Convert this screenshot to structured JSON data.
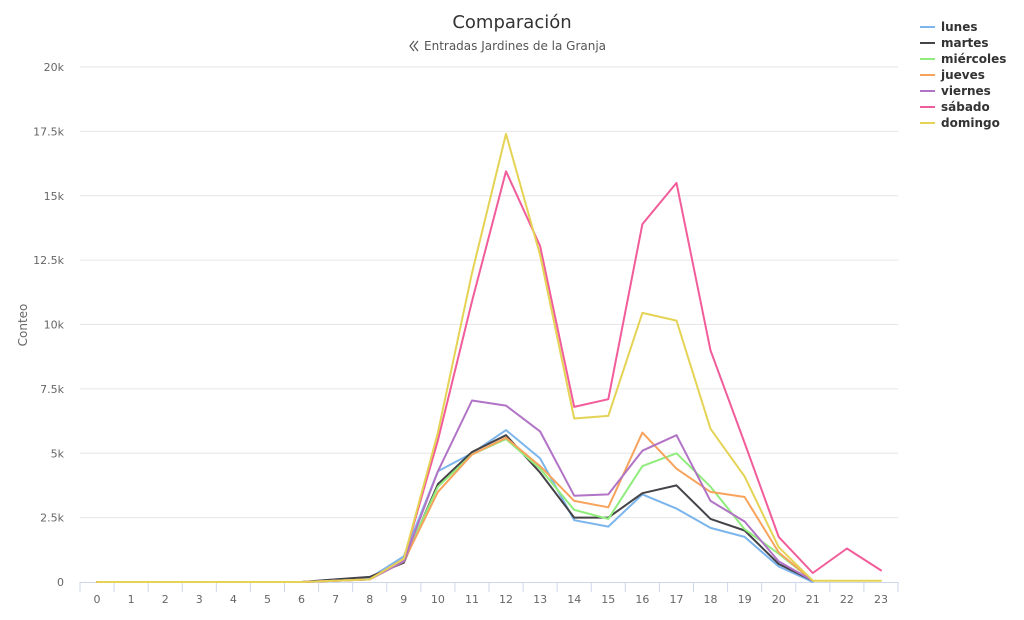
{
  "chart_data": {
    "type": "line",
    "title": "Comparación",
    "subtitle_icon": "double-chevron-left-icon",
    "subtitle": "Entradas Jardines de la Granja",
    "xlabel": "",
    "ylabel": "Conteo",
    "ylim": [
      0,
      20000
    ],
    "y_ticks": [
      0,
      2500,
      5000,
      7500,
      10000,
      12500,
      15000,
      17500,
      20000
    ],
    "y_tick_labels": [
      "0",
      "2.5k",
      "5k",
      "7.5k",
      "10k",
      "12.5k",
      "15k",
      "17.5k",
      "20k"
    ],
    "categories": [
      "0",
      "1",
      "2",
      "3",
      "4",
      "5",
      "6",
      "7",
      "8",
      "9",
      "10",
      "11",
      "12",
      "13",
      "14",
      "15",
      "16",
      "17",
      "18",
      "19",
      "20",
      "21",
      "22",
      "23"
    ],
    "grid": true,
    "legend_position": "top-right",
    "series": [
      {
        "name": "lunes",
        "color": "#7cb5ec",
        "values": [
          0,
          0,
          0,
          0,
          0,
          0,
          0,
          100,
          150,
          1000,
          4300,
          5000,
          5900,
          4800,
          2400,
          2150,
          3400,
          2850,
          2100,
          1750,
          600,
          0,
          null,
          null
        ]
      },
      {
        "name": "martes",
        "color": "#434348",
        "values": [
          0,
          0,
          0,
          0,
          0,
          0,
          0,
          100,
          200,
          750,
          3800,
          5050,
          5700,
          4250,
          2500,
          2500,
          3450,
          3750,
          2450,
          2000,
          700,
          50,
          null,
          null
        ]
      },
      {
        "name": "miércoles",
        "color": "#90ed7d",
        "values": [
          0,
          0,
          0,
          0,
          0,
          0,
          0,
          50,
          100,
          850,
          3700,
          4950,
          5550,
          4400,
          2800,
          2450,
          4500,
          5000,
          3700,
          2050,
          1100,
          50,
          null,
          null
        ]
      },
      {
        "name": "jueves",
        "color": "#f7a35c",
        "values": [
          0,
          0,
          0,
          0,
          0,
          0,
          0,
          50,
          100,
          800,
          3500,
          4950,
          5600,
          4500,
          3150,
          2900,
          5800,
          4400,
          3500,
          3300,
          1150,
          50,
          null,
          null
        ]
      },
      {
        "name": "viernes",
        "color": "#b173c5",
        "values": [
          0,
          0,
          0,
          0,
          0,
          0,
          0,
          50,
          100,
          800,
          4300,
          7050,
          6850,
          5850,
          3350,
          3400,
          5100,
          5700,
          3150,
          2350,
          800,
          50,
          null,
          null
        ]
      },
      {
        "name": "sábado",
        "color": "#f15c9a",
        "values": [
          0,
          0,
          0,
          0,
          0,
          0,
          0,
          50,
          100,
          900,
          5500,
          10900,
          15950,
          13050,
          6800,
          7100,
          13900,
          15500,
          9000,
          5400,
          1750,
          350,
          1300,
          450
        ]
      },
      {
        "name": "domingo",
        "color": "#e4d354",
        "values": [
          0,
          0,
          0,
          0,
          0,
          0,
          0,
          50,
          100,
          900,
          5800,
          12000,
          17400,
          12700,
          6350,
          6450,
          10450,
          10150,
          5950,
          4100,
          1350,
          50,
          50,
          50
        ]
      }
    ]
  }
}
